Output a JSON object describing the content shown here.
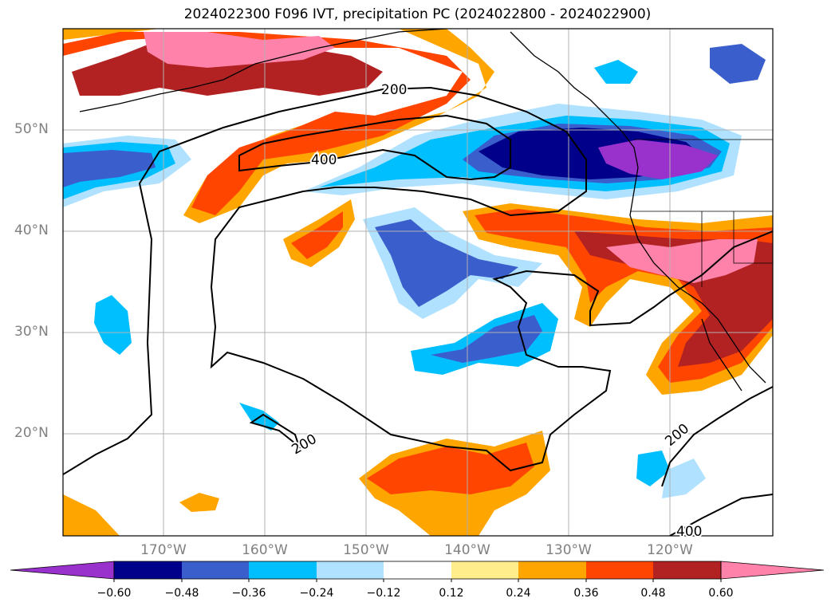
{
  "title": "2024022300 F096 IVT, precipitation PC (2024022800 - 2024022900)",
  "lat_labels": [
    "50°N",
    "40°N",
    "30°N",
    "20°N"
  ],
  "lon_labels": [
    "170°W",
    "160°W",
    "150°W",
    "140°W",
    "130°W",
    "120°W"
  ],
  "contour_labels": [
    "200",
    "400",
    "200",
    "200",
    "400"
  ],
  "colorbar": {
    "ticks": [
      "−0.60",
      "−0.48",
      "−0.36",
      "−0.24",
      "−0.12",
      "0.12",
      "0.24",
      "0.36",
      "0.48",
      "0.60"
    ],
    "colors": [
      "#9932cc",
      "#00008b",
      "#3a5fcd",
      "#00bfff",
      "#b0e2ff",
      "#ffffff",
      "#ffec8b",
      "#ffa500",
      "#ff4500",
      "#b22222",
      "#ff82ab"
    ]
  },
  "colors": {
    "ocean": "#ffffff",
    "grid": "#b0b0b0",
    "coast": "#000000"
  }
}
